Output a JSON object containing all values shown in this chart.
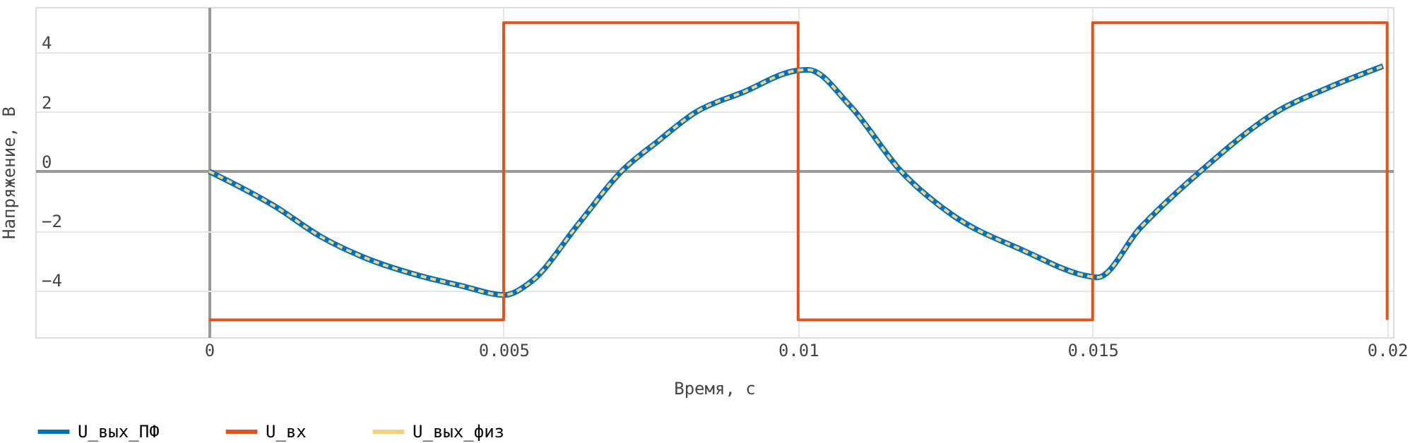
{
  "chart_data": {
    "type": "line",
    "xlabel": "Время, с",
    "ylabel": "Напряжение, В",
    "xlim": [
      -0.00295,
      0.0201
    ],
    "ylim": [
      -5.58,
      5.53
    ],
    "xticks": [
      0,
      0.005,
      0.01,
      0.015,
      0.02
    ],
    "yticks": [
      -4,
      -2,
      0,
      2,
      4
    ],
    "grid": true,
    "legend": "bottom left",
    "x": [
      0,
      0.00112,
      0.0019,
      0.0027,
      0.0035,
      0.0043,
      0.005,
      0.00548,
      0.00627,
      0.007,
      0.00763,
      0.00826,
      0.00905,
      0.01,
      0.01017,
      0.01088,
      0.01175,
      0.01262,
      0.01381,
      0.01496,
      0.01508,
      0.0158,
      0.01683,
      0.01818,
      0.01898,
      0.01993
    ],
    "series": [
      {
        "name": "U_вых_ПФ",
        "color": "#0072bd",
        "line_style": "solid",
        "values": [
          0,
          -1.18,
          -2.2,
          -2.95,
          -3.47,
          -3.86,
          -4.16,
          -3.69,
          -1.77,
          0,
          1.03,
          1.99,
          2.65,
          3.4,
          3.42,
          2.21,
          0,
          -1.47,
          -2.65,
          -3.54,
          -3.57,
          -1.92,
          0,
          2.07,
          2.8,
          3.54
        ]
      },
      {
        "name": "U_вх",
        "type": "step",
        "color": "#e0531b",
        "line_style": "solid",
        "x": [
          0,
          0.005,
          0.01,
          0.015,
          0.02
        ],
        "values": [
          -5,
          5,
          -5,
          5,
          -5
        ]
      },
      {
        "name": "U_вых_физ",
        "color": "#f5d27a",
        "line_style": "dashed",
        "values": [
          0,
          -1.18,
          -2.2,
          -2.95,
          -3.47,
          -3.86,
          -4.16,
          -3.69,
          -1.77,
          0,
          1.03,
          1.99,
          2.65,
          3.4,
          3.42,
          2.21,
          0,
          -1.47,
          -2.65,
          -3.54,
          -3.57,
          -1.92,
          0,
          2.07,
          2.8,
          3.54
        ]
      }
    ]
  }
}
